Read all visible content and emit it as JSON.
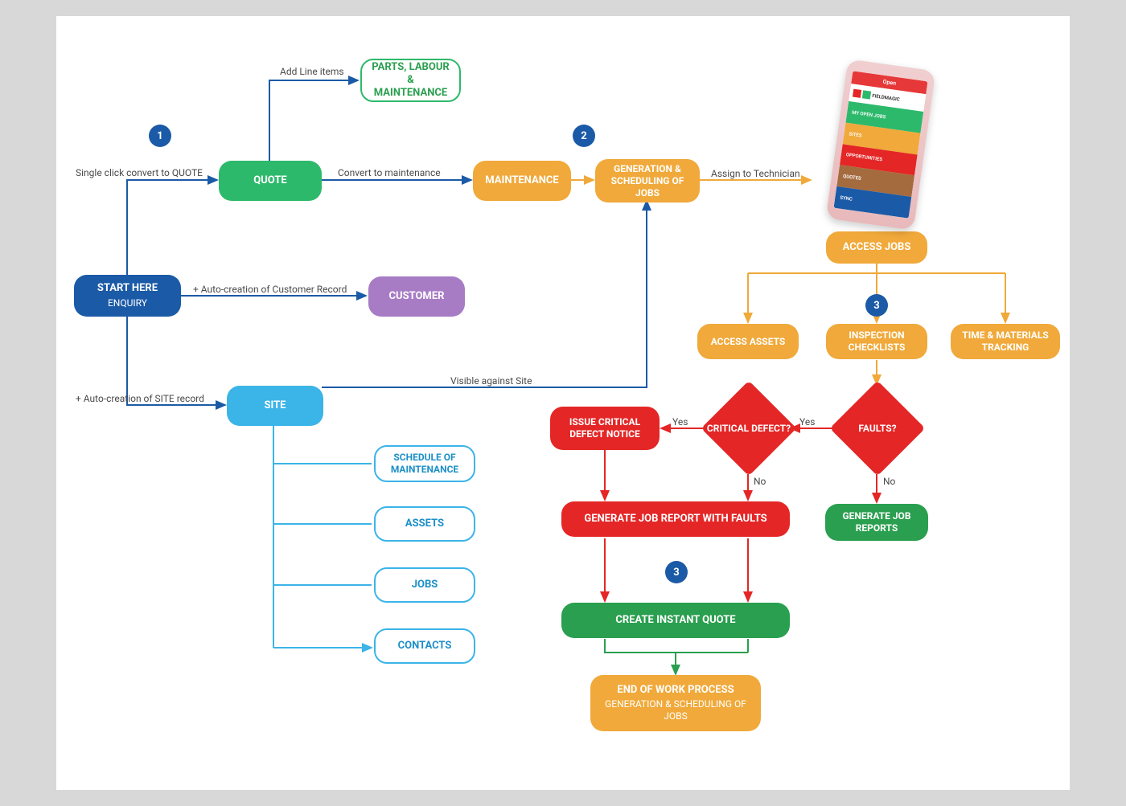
{
  "colors": {
    "blue_dark": "#1b5aa6",
    "green": "#2db96b",
    "green_dark": "#2a9f4f",
    "orange": "#f0a93a",
    "sky": "#3bb4e8",
    "purple": "#a77cc5",
    "red": "#e42626",
    "text_dark": "#4a4a4a",
    "arrow_orange": "#f0a93a",
    "arrow_blue": "#1b5aa6",
    "arrow_red": "#e42626",
    "arrow_green": "#2a9f4f",
    "bg_outer": "#d8d8d8",
    "bg_inner": "#ffffff"
  },
  "badges": {
    "b1": "1",
    "b2": "2",
    "b3": "3",
    "b3b": "3"
  },
  "nodes": {
    "start": {
      "title": "START HERE",
      "sub": "ENQUIRY"
    },
    "quote": {
      "title": "QUOTE"
    },
    "parts": {
      "title": "PARTS, LABOUR & MAINTENANCE"
    },
    "customer": {
      "title": "CUSTOMER"
    },
    "site": {
      "title": "SITE"
    },
    "sched": {
      "title": "SCHEDULE OF MAINTENANCE"
    },
    "assets": {
      "title": "ASSETS"
    },
    "jobs": {
      "title": "JOBS"
    },
    "contacts": {
      "title": "CONTACTS"
    },
    "maintenance": {
      "title": "MAINTENANCE"
    },
    "gensched": {
      "title": "GENERATION & SCHEDULING OF JOBS"
    },
    "accessjobs": {
      "title": "ACCESS JOBS"
    },
    "accessassets": {
      "title": "ACCESS ASSETS"
    },
    "inspchk": {
      "title": "INSPECTION CHECKLISTS"
    },
    "timemat": {
      "title": "TIME & MATERIALS TRACKING"
    },
    "faults": {
      "title": "FAULTS?"
    },
    "critdef": {
      "title": "CRITICAL DEFECT?"
    },
    "issuecrit": {
      "title": "ISSUE CRITICAL DEFECT NOTICE"
    },
    "genjobrep_faults": {
      "title": "GENERATE JOB REPORT WITH FAULTS"
    },
    "genjobrep": {
      "title": "GENERATE JOB REPORTS"
    },
    "createquote": {
      "title": "CREATE INSTANT QUOTE"
    },
    "endwork": {
      "title": "END OF WORK PROCESS",
      "sub": "GENERATION & SCHEDULING OF JOBS"
    }
  },
  "labels": {
    "l_addline": "Add Line items",
    "l_convertquote": "Single click convert to QUOTE",
    "l_convertmaint": "Convert to maintenance",
    "l_autocust": "+ Auto-creation of Customer Record",
    "l_autosite": "+ Auto-creation of SITE record",
    "l_visiblesite": "Visible against Site",
    "l_assigntech": "Assign to Technician",
    "l_yes1": "Yes",
    "l_yes2": "Yes",
    "l_no1": "No",
    "l_no2": "No"
  },
  "phone": {
    "brand": "FIELDMAGIC",
    "rows": [
      {
        "label": "MY OPEN JOBS",
        "color": "#2db96b"
      },
      {
        "label": "SITES",
        "color": "#f0a93a"
      },
      {
        "label": "OPPORTUNITIES",
        "color": "#e42626"
      },
      {
        "label": "QUOTES",
        "color": "#a46b3f"
      },
      {
        "label": "SYNC",
        "color": "#1b5aa6"
      }
    ]
  },
  "style": {
    "node_radius": 16,
    "node_fontsize": 13,
    "outline_border": 2,
    "diamond_size": 84,
    "badge_size": 28
  }
}
